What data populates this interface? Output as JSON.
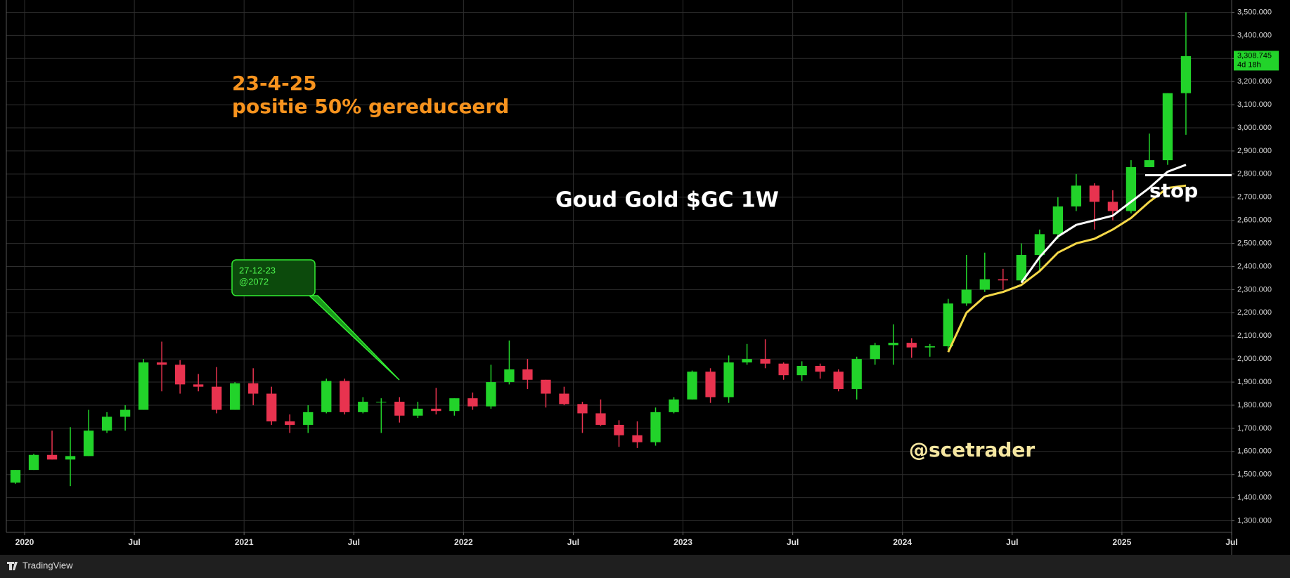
{
  "chart_data": {
    "type": "candlestick",
    "title": "Goud Gold $GC 1W",
    "annotations": {
      "date": "23-4-25",
      "note": "positie 50% gereduceerd",
      "stop": "stop",
      "author": "@scetrader"
    },
    "callout": [
      "27-12-23",
      "@2072"
    ],
    "footer": "TradingView",
    "x": [
      "2019-12",
      "2020-01",
      "2020-02",
      "2020-03",
      "2020-04",
      "2020-05",
      "2020-06",
      "2020-07",
      "2020-08",
      "2020-09",
      "2020-10",
      "2020-11",
      "2020-12",
      "2021-01",
      "2021-02",
      "2021-03",
      "2021-04",
      "2021-05",
      "2021-06",
      "2021-07",
      "2021-08",
      "2021-09",
      "2021-10",
      "2021-11",
      "2021-12",
      "2022-01",
      "2022-02",
      "2022-03",
      "2022-04",
      "2022-05",
      "2022-06",
      "2022-07",
      "2022-08",
      "2022-09",
      "2022-10",
      "2022-11",
      "2022-12",
      "2023-01",
      "2023-02",
      "2023-03",
      "2023-04",
      "2023-05",
      "2023-06",
      "2023-07",
      "2023-08",
      "2023-09",
      "2023-10",
      "2023-11",
      "2023-12",
      "2024-01",
      "2024-02",
      "2024-03",
      "2024-04",
      "2024-05",
      "2024-06",
      "2024-07",
      "2024-08",
      "2024-09",
      "2024-10",
      "2024-11",
      "2024-12",
      "2025-01",
      "2025-02",
      "2025-03",
      "2025-04"
    ],
    "open": [
      1465,
      1520,
      1585,
      1565,
      1580,
      1690,
      1750,
      1780,
      1985,
      1975,
      1890,
      1880,
      1780,
      1895,
      1850,
      1730,
      1715,
      1770,
      1905,
      1770,
      1815,
      1815,
      1755,
      1785,
      1775,
      1830,
      1795,
      1900,
      1955,
      1910,
      1850,
      1805,
      1765,
      1715,
      1670,
      1640,
      1770,
      1825,
      1945,
      1835,
      1985,
      2000,
      1980,
      1930,
      1970,
      1945,
      1870,
      2000,
      2060,
      2070,
      2050,
      2055,
      2240,
      2300,
      2345,
      2340,
      2450,
      2540,
      2660,
      2750,
      2680,
      2640,
      2830,
      2860,
      3150
    ],
    "high": [
      1520,
      1590,
      1690,
      1705,
      1780,
      1770,
      1800,
      2000,
      2075,
      1995,
      1935,
      1965,
      1900,
      1960,
      1880,
      1760,
      1800,
      1915,
      1915,
      1835,
      1830,
      1835,
      1815,
      1875,
      1830,
      1855,
      1975,
      2080,
      2000,
      1910,
      1880,
      1815,
      1825,
      1735,
      1730,
      1790,
      1835,
      1950,
      1960,
      2015,
      2065,
      2085,
      1985,
      1990,
      1980,
      1955,
      2010,
      2070,
      2150,
      2090,
      2065,
      2260,
      2450,
      2460,
      2390,
      2500,
      2560,
      2700,
      2800,
      2760,
      2730,
      2860,
      2975,
      3150,
      3500
    ],
    "low": [
      1460,
      1520,
      1565,
      1450,
      1580,
      1680,
      1690,
      1780,
      1860,
      1850,
      1860,
      1765,
      1780,
      1800,
      1715,
      1680,
      1680,
      1765,
      1760,
      1765,
      1680,
      1725,
      1745,
      1760,
      1755,
      1780,
      1785,
      1890,
      1870,
      1790,
      1800,
      1680,
      1710,
      1620,
      1615,
      1625,
      1765,
      1825,
      1810,
      1810,
      1975,
      1960,
      1910,
      1905,
      1915,
      1860,
      1825,
      1975,
      1975,
      2005,
      2010,
      2040,
      2230,
      2290,
      2300,
      2330,
      2380,
      2520,
      2640,
      2560,
      2600,
      2630,
      2830,
      2840,
      2970
    ],
    "close": [
      1520,
      1585,
      1565,
      1580,
      1690,
      1750,
      1780,
      1985,
      1975,
      1890,
      1880,
      1780,
      1895,
      1850,
      1730,
      1715,
      1770,
      1905,
      1770,
      1815,
      1815,
      1755,
      1785,
      1775,
      1830,
      1795,
      1900,
      1955,
      1910,
      1850,
      1805,
      1765,
      1715,
      1670,
      1640,
      1770,
      1825,
      1945,
      1835,
      1985,
      2000,
      1980,
      1930,
      1970,
      1945,
      1870,
      2000,
      2060,
      2070,
      2050,
      2055,
      2240,
      2300,
      2345,
      2340,
      2450,
      2540,
      2660,
      2750,
      2680,
      2640,
      2830,
      2860,
      3150,
      3310
    ],
    "up_color": "#22d32a",
    "down_color": "#e8334f",
    "series": [
      {
        "color": "#ffffff",
        "x": [
          "2024-07",
          "2024-08",
          "2024-09",
          "2024-10",
          "2024-11",
          "2024-12",
          "2025-01",
          "2025-02",
          "2025-03",
          "2025-04"
        ],
        "values": [
          2330,
          2440,
          2530,
          2580,
          2600,
          2620,
          2680,
          2740,
          2810,
          2840
        ]
      },
      {
        "color": "#f5d848",
        "x": [
          "2024-03",
          "2024-04",
          "2024-05",
          "2024-06",
          "2024-07",
          "2024-08",
          "2024-09",
          "2024-10",
          "2024-11",
          "2024-12",
          "2025-01",
          "2025-02",
          "2025-03",
          "2025-04"
        ],
        "values": [
          2030,
          2200,
          2270,
          2290,
          2320,
          2380,
          2460,
          2500,
          2520,
          2560,
          2610,
          2680,
          2740,
          2750
        ]
      }
    ],
    "stop_level": 2795,
    "last_price": {
      "value": 3308.745,
      "label": "3,308.745"
    },
    "countdown": "4d 18h",
    "xlim": [
      "2019-12",
      "2025-07"
    ],
    "ylim": [
      1250,
      3553
    ],
    "grid": true,
    "xticks": [
      {
        "value": "2020-01",
        "label": "2020"
      },
      {
        "value": "2020-07",
        "label": "Jul"
      },
      {
        "value": "2021-01",
        "label": "2021"
      },
      {
        "value": "2021-07",
        "label": "Jul"
      },
      {
        "value": "2022-01",
        "label": "2022"
      },
      {
        "value": "2022-07",
        "label": "Jul"
      },
      {
        "value": "2023-01",
        "label": "2023"
      },
      {
        "value": "2023-07",
        "label": "Jul"
      },
      {
        "value": "2024-01",
        "label": "2024"
      },
      {
        "value": "2024-07",
        "label": "Jul"
      },
      {
        "value": "2025-01",
        "label": "2025"
      },
      {
        "value": "2025-07",
        "label": "Jul"
      }
    ],
    "yticks": [
      {
        "value": 1300,
        "label": "1,300.000"
      },
      {
        "value": 1400,
        "label": "1,400.000"
      },
      {
        "value": 1500,
        "label": "1,500.000"
      },
      {
        "value": 1600,
        "label": "1,600.000"
      },
      {
        "value": 1700,
        "label": "1,700.000"
      },
      {
        "value": 1800,
        "label": "1,800.000"
      },
      {
        "value": 1900,
        "label": "1,900.000"
      },
      {
        "value": 2000,
        "label": "2,000.000"
      },
      {
        "value": 2100,
        "label": "2,100.000"
      },
      {
        "value": 2200,
        "label": "2,200.000"
      },
      {
        "value": 2300,
        "label": "2,300.000"
      },
      {
        "value": 2400,
        "label": "2,400.000"
      },
      {
        "value": 2500,
        "label": "2,500.000"
      },
      {
        "value": 2600,
        "label": "2,600.000"
      },
      {
        "value": 2700,
        "label": "2,700.000"
      },
      {
        "value": 2800,
        "label": "2,800.000"
      },
      {
        "value": 2900,
        "label": "2,900.000"
      },
      {
        "value": 3000,
        "label": "3,000.000"
      },
      {
        "value": 3100,
        "label": "3,100.000"
      },
      {
        "value": 3200,
        "label": "3,200.000"
      },
      {
        "value": 3300,
        "label": "3,300.000"
      },
      {
        "value": 3400,
        "label": "3,400.000"
      },
      {
        "value": 3500,
        "label": "3,500.000"
      }
    ]
  }
}
